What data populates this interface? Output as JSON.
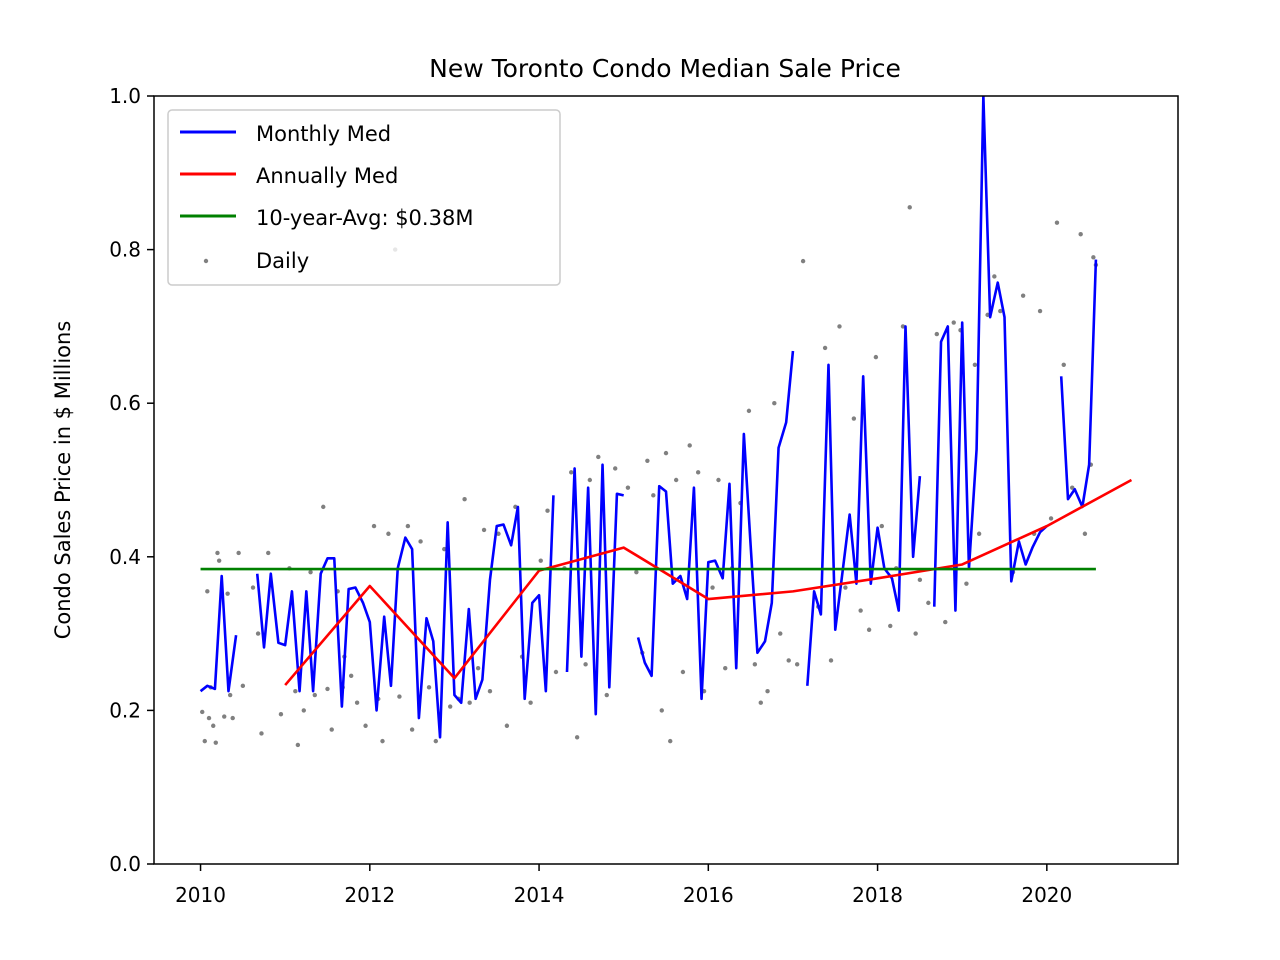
{
  "chart_data": {
    "type": "line",
    "title": "New Toronto Condo Median Sale Price",
    "xlabel": "",
    "ylabel": "Condo Sales Price in $ Millions",
    "xlim": [
      2009.45,
      2021.55
    ],
    "ylim": [
      0.0,
      1.0
    ],
    "xticks": [
      2010,
      2012,
      2014,
      2016,
      2018,
      2020
    ],
    "yticks": [
      0.0,
      0.2,
      0.4,
      0.6,
      0.8,
      1.0
    ],
    "xtick_labels": [
      "2010",
      "2012",
      "2014",
      "2016",
      "2018",
      "2020"
    ],
    "ytick_labels": [
      "0.0",
      "0.2",
      "0.4",
      "0.6",
      "0.8",
      "1.0"
    ],
    "grid": false,
    "legend_position": "top-left",
    "series": [
      {
        "name": "Monthly Med",
        "color": "#0000ff",
        "segments": [
          [
            [
              2010.0,
              0.225
            ],
            [
              2010.08,
              0.232
            ],
            [
              2010.17,
              0.228
            ],
            [
              2010.25,
              0.375
            ],
            [
              2010.33,
              0.225
            ],
            [
              2010.42,
              0.298
            ]
          ],
          [
            [
              2010.67,
              0.378
            ],
            [
              2010.75,
              0.282
            ],
            [
              2010.83,
              0.378
            ],
            [
              2010.92,
              0.288
            ],
            [
              2011.0,
              0.285
            ],
            [
              2011.08,
              0.355
            ],
            [
              2011.17,
              0.225
            ],
            [
              2011.25,
              0.355
            ],
            [
              2011.33,
              0.225
            ],
            [
              2011.42,
              0.378
            ],
            [
              2011.5,
              0.398
            ],
            [
              2011.58,
              0.398
            ],
            [
              2011.67,
              0.205
            ],
            [
              2011.75,
              0.358
            ],
            [
              2011.83,
              0.36
            ],
            [
              2011.92,
              0.34
            ],
            [
              2012.0,
              0.315
            ],
            [
              2012.08,
              0.2
            ],
            [
              2012.17,
              0.322
            ],
            [
              2012.25,
              0.232
            ],
            [
              2012.33,
              0.385
            ],
            [
              2012.42,
              0.425
            ],
            [
              2012.5,
              0.41
            ],
            [
              2012.58,
              0.19
            ],
            [
              2012.67,
              0.32
            ],
            [
              2012.75,
              0.29
            ],
            [
              2012.83,
              0.165
            ],
            [
              2012.92,
              0.445
            ],
            [
              2013.0,
              0.22
            ],
            [
              2013.08,
              0.21
            ],
            [
              2013.17,
              0.332
            ],
            [
              2013.25,
              0.215
            ],
            [
              2013.33,
              0.24
            ],
            [
              2013.42,
              0.37
            ],
            [
              2013.5,
              0.44
            ],
            [
              2013.58,
              0.442
            ],
            [
              2013.67,
              0.415
            ],
            [
              2013.75,
              0.465
            ],
            [
              2013.83,
              0.215
            ],
            [
              2013.92,
              0.34
            ],
            [
              2014.0,
              0.35
            ],
            [
              2014.08,
              0.225
            ],
            [
              2014.17,
              0.48
            ]
          ],
          [
            [
              2014.33,
              0.25
            ],
            [
              2014.42,
              0.515
            ],
            [
              2014.5,
              0.27
            ],
            [
              2014.58,
              0.49
            ],
            [
              2014.67,
              0.195
            ],
            [
              2014.75,
              0.52
            ],
            [
              2014.83,
              0.23
            ],
            [
              2014.92,
              0.482
            ],
            [
              2015.0,
              0.48
            ]
          ],
          [
            [
              2015.17,
              0.295
            ],
            [
              2015.25,
              0.262
            ],
            [
              2015.33,
              0.245
            ],
            [
              2015.42,
              0.492
            ],
            [
              2015.5,
              0.485
            ],
            [
              2015.58,
              0.365
            ],
            [
              2015.67,
              0.375
            ],
            [
              2015.75,
              0.345
            ],
            [
              2015.83,
              0.49
            ],
            [
              2015.92,
              0.215
            ],
            [
              2016.0,
              0.393
            ],
            [
              2016.08,
              0.395
            ],
            [
              2016.17,
              0.372
            ],
            [
              2016.25,
              0.495
            ],
            [
              2016.33,
              0.255
            ],
            [
              2016.42,
              0.56
            ],
            [
              2016.5,
              0.415
            ],
            [
              2016.58,
              0.275
            ],
            [
              2016.67,
              0.29
            ],
            [
              2016.75,
              0.34
            ],
            [
              2016.83,
              0.542
            ],
            [
              2016.92,
              0.575
            ],
            [
              2017.0,
              0.668
            ]
          ],
          [
            [
              2017.17,
              0.232
            ],
            [
              2017.25,
              0.355
            ],
            [
              2017.33,
              0.325
            ],
            [
              2017.42,
              0.65
            ],
            [
              2017.5,
              0.305
            ],
            [
              2017.58,
              0.375
            ],
            [
              2017.67,
              0.455
            ],
            [
              2017.75,
              0.365
            ],
            [
              2017.83,
              0.635
            ],
            [
              2017.92,
              0.365
            ],
            [
              2018.0,
              0.438
            ],
            [
              2018.08,
              0.385
            ],
            [
              2018.17,
              0.372
            ],
            [
              2018.25,
              0.33
            ],
            [
              2018.33,
              0.7
            ],
            [
              2018.42,
              0.4
            ],
            [
              2018.5,
              0.505
            ]
          ],
          [
            [
              2018.67,
              0.335
            ],
            [
              2018.75,
              0.68
            ],
            [
              2018.83,
              0.7
            ],
            [
              2018.92,
              0.33
            ],
            [
              2019.0,
              0.705
            ],
            [
              2019.08,
              0.385
            ],
            [
              2019.17,
              0.54
            ],
            [
              2019.25,
              1.0
            ],
            [
              2019.33,
              0.712
            ],
            [
              2019.42,
              0.757
            ],
            [
              2019.5,
              0.712
            ],
            [
              2019.58,
              0.368
            ],
            [
              2019.67,
              0.42
            ],
            [
              2019.75,
              0.39
            ],
            [
              2019.83,
              0.412
            ],
            [
              2019.92,
              0.432
            ],
            [
              2020.0,
              0.44
            ]
          ],
          [
            [
              2020.17,
              0.635
            ],
            [
              2020.25,
              0.475
            ],
            [
              2020.33,
              0.488
            ],
            [
              2020.42,
              0.465
            ],
            [
              2020.5,
              0.52
            ],
            [
              2020.58,
              0.787
            ]
          ]
        ]
      },
      {
        "name": "Annually Med",
        "color": "#ff0000",
        "points": [
          [
            2011.0,
            0.233
          ],
          [
            2012.0,
            0.362
          ],
          [
            2013.0,
            0.242
          ],
          [
            2014.0,
            0.382
          ],
          [
            2015.0,
            0.412
          ],
          [
            2016.0,
            0.345
          ],
          [
            2017.0,
            0.355
          ],
          [
            2018.0,
            0.372
          ],
          [
            2019.0,
            0.39
          ],
          [
            2020.0,
            0.44
          ],
          [
            2021.0,
            0.5
          ]
        ]
      },
      {
        "name": "10-year-Avg: $0.38M",
        "color": "#008000",
        "points": [
          [
            2010.0,
            0.384
          ],
          [
            2020.58,
            0.384
          ]
        ]
      },
      {
        "name": "Daily",
        "color": "#808080",
        "type": "scatter",
        "points": [
          [
            2010.02,
            0.198
          ],
          [
            2010.05,
            0.16
          ],
          [
            2010.08,
            0.355
          ],
          [
            2010.1,
            0.19
          ],
          [
            2010.12,
            0.23
          ],
          [
            2010.15,
            0.18
          ],
          [
            2010.18,
            0.158
          ],
          [
            2010.2,
            0.405
          ],
          [
            2010.22,
            0.395
          ],
          [
            2010.28,
            0.192
          ],
          [
            2010.32,
            0.352
          ],
          [
            2010.35,
            0.22
          ],
          [
            2010.38,
            0.19
          ],
          [
            2010.45,
            0.405
          ],
          [
            2010.5,
            0.232
          ],
          [
            2010.62,
            0.36
          ],
          [
            2010.68,
            0.3
          ],
          [
            2010.72,
            0.17
          ],
          [
            2010.8,
            0.405
          ],
          [
            2010.95,
            0.195
          ],
          [
            2011.05,
            0.385
          ],
          [
            2011.12,
            0.225
          ],
          [
            2011.15,
            0.155
          ],
          [
            2011.22,
            0.2
          ],
          [
            2011.3,
            0.38
          ],
          [
            2011.35,
            0.22
          ],
          [
            2011.45,
            0.465
          ],
          [
            2011.5,
            0.228
          ],
          [
            2011.55,
            0.175
          ],
          [
            2011.62,
            0.355
          ],
          [
            2011.68,
            0.23
          ],
          [
            2011.7,
            0.27
          ],
          [
            2011.78,
            0.245
          ],
          [
            2011.85,
            0.21
          ],
          [
            2011.95,
            0.18
          ],
          [
            2012.05,
            0.44
          ],
          [
            2012.1,
            0.215
          ],
          [
            2012.15,
            0.16
          ],
          [
            2012.22,
            0.43
          ],
          [
            2012.3,
            0.8
          ],
          [
            2012.35,
            0.218
          ],
          [
            2012.45,
            0.44
          ],
          [
            2012.5,
            0.175
          ],
          [
            2012.6,
            0.42
          ],
          [
            2012.7,
            0.23
          ],
          [
            2012.78,
            0.16
          ],
          [
            2012.88,
            0.41
          ],
          [
            2012.95,
            0.205
          ],
          [
            2013.05,
            0.215
          ],
          [
            2013.12,
            0.475
          ],
          [
            2013.18,
            0.21
          ],
          [
            2013.28,
            0.255
          ],
          [
            2013.35,
            0.435
          ],
          [
            2013.42,
            0.225
          ],
          [
            2013.52,
            0.43
          ],
          [
            2013.62,
            0.18
          ],
          [
            2013.72,
            0.465
          ],
          [
            2013.8,
            0.27
          ],
          [
            2013.9,
            0.21
          ],
          [
            2014.02,
            0.395
          ],
          [
            2014.1,
            0.46
          ],
          [
            2014.2,
            0.25
          ],
          [
            2014.3,
            0.385
          ],
          [
            2014.38,
            0.51
          ],
          [
            2014.45,
            0.165
          ],
          [
            2014.55,
            0.26
          ],
          [
            2014.6,
            0.5
          ],
          [
            2014.7,
            0.53
          ],
          [
            2014.8,
            0.22
          ],
          [
            2014.9,
            0.515
          ],
          [
            2015.05,
            0.49
          ],
          [
            2015.15,
            0.38
          ],
          [
            2015.22,
            0.275
          ],
          [
            2015.28,
            0.525
          ],
          [
            2015.35,
            0.48
          ],
          [
            2015.45,
            0.2
          ],
          [
            2015.5,
            0.535
          ],
          [
            2015.55,
            0.16
          ],
          [
            2015.62,
            0.5
          ],
          [
            2015.7,
            0.25
          ],
          [
            2015.78,
            0.545
          ],
          [
            2015.88,
            0.51
          ],
          [
            2015.95,
            0.225
          ],
          [
            2016.05,
            0.36
          ],
          [
            2016.12,
            0.5
          ],
          [
            2016.2,
            0.255
          ],
          [
            2016.28,
            0.385
          ],
          [
            2016.38,
            0.47
          ],
          [
            2016.48,
            0.59
          ],
          [
            2016.55,
            0.26
          ],
          [
            2016.62,
            0.21
          ],
          [
            2016.7,
            0.225
          ],
          [
            2016.78,
            0.6
          ],
          [
            2016.85,
            0.3
          ],
          [
            2016.95,
            0.265
          ],
          [
            2017.05,
            0.26
          ],
          [
            2017.12,
            0.785
          ],
          [
            2017.3,
            0.335
          ],
          [
            2017.38,
            0.672
          ],
          [
            2017.45,
            0.265
          ],
          [
            2017.55,
            0.7
          ],
          [
            2017.62,
            0.36
          ],
          [
            2017.72,
            0.58
          ],
          [
            2017.8,
            0.33
          ],
          [
            2017.9,
            0.305
          ],
          [
            2017.98,
            0.66
          ],
          [
            2018.05,
            0.44
          ],
          [
            2018.15,
            0.31
          ],
          [
            2018.22,
            0.385
          ],
          [
            2018.3,
            0.7
          ],
          [
            2018.38,
            0.855
          ],
          [
            2018.45,
            0.3
          ],
          [
            2018.5,
            0.37
          ],
          [
            2018.6,
            0.34
          ],
          [
            2018.7,
            0.69
          ],
          [
            2018.8,
            0.315
          ],
          [
            2018.9,
            0.705
          ],
          [
            2018.98,
            0.695
          ],
          [
            2019.05,
            0.365
          ],
          [
            2019.15,
            0.65
          ],
          [
            2019.2,
            0.43
          ],
          [
            2019.3,
            0.715
          ],
          [
            2019.38,
            0.765
          ],
          [
            2019.45,
            0.72
          ],
          [
            2019.6,
            0.38
          ],
          [
            2019.72,
            0.74
          ],
          [
            2019.85,
            0.43
          ],
          [
            2019.92,
            0.72
          ],
          [
            2020.05,
            0.45
          ],
          [
            2020.12,
            0.835
          ],
          [
            2020.2,
            0.65
          ],
          [
            2020.3,
            0.49
          ],
          [
            2020.4,
            0.82
          ],
          [
            2020.45,
            0.43
          ],
          [
            2020.52,
            0.52
          ],
          [
            2020.55,
            0.79
          ],
          [
            2020.58,
            0.78
          ]
        ]
      }
    ]
  }
}
